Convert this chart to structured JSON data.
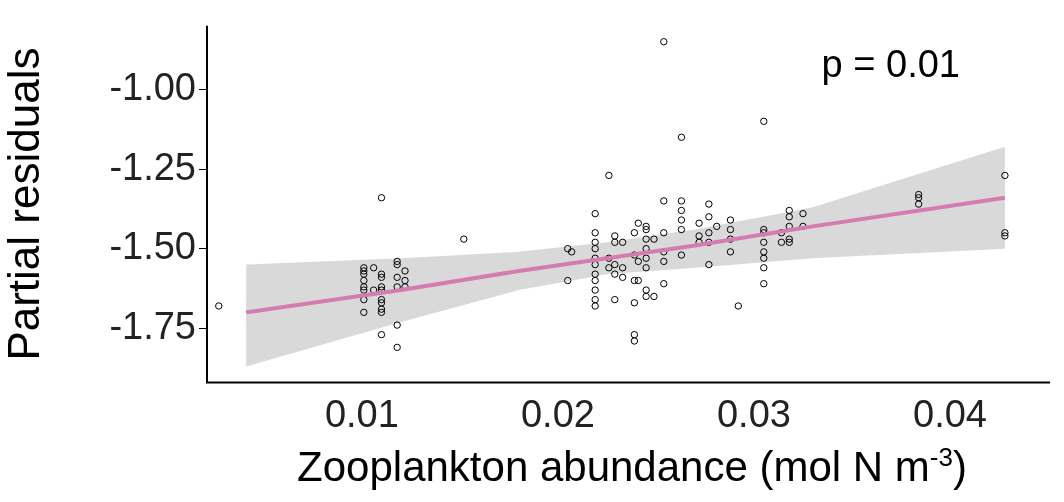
{
  "chart_data": {
    "type": "scatter",
    "xlabel": "Zooplankton abundance (mol N m$^{-3}$)",
    "ylabel": "Partial residuals",
    "xlim": [
      0.0021,
      0.0451
    ],
    "xticks": [
      0.01,
      0.02,
      0.03,
      0.04
    ],
    "ylim": [
      -1.92,
      -0.8
    ],
    "yticks": [
      {
        "value": -1.75,
        "label": "-1.75"
      },
      {
        "value": -1.5,
        "label": "-1.50"
      },
      {
        "value": -1.25,
        "label": "-1.25"
      },
      {
        "value": -1,
        "label": "-1.00"
      }
    ],
    "grid": false,
    "legend": false,
    "marker": "circle",
    "annotations": [
      "p = 0.01"
    ],
    "series": [
      {
        "color": "#000000",
        "x": [
          0.0027,
          0.0101,
          0.0101,
          0.0101,
          0.0101,
          0.0101,
          0.0101,
          0.0101,
          0.0101,
          0.0106,
          0.0106,
          0.011,
          0.011,
          0.011,
          0.011,
          0.011,
          0.011,
          0.011,
          0.011,
          0.011,
          0.011,
          0.0118,
          0.0118,
          0.0118,
          0.0118,
          0.0118,
          0.0118,
          0.0122,
          0.0122,
          0.0122,
          0.0152,
          0.0205,
          0.0205,
          0.0207,
          0.0219,
          0.0219,
          0.0219,
          0.0219,
          0.0219,
          0.0219,
          0.0219,
          0.0219,
          0.0219,
          0.0219,
          0.0219,
          0.0226,
          0.0226,
          0.0226,
          0.0229,
          0.0229,
          0.0229,
          0.0229,
          0.0229,
          0.0233,
          0.0233,
          0.0233,
          0.0239,
          0.0239,
          0.0239,
          0.0239,
          0.0239,
          0.0239,
          0.0241,
          0.0241,
          0.0241,
          0.0245,
          0.0245,
          0.0245,
          0.0245,
          0.0245,
          0.0245,
          0.0245,
          0.0245,
          0.0249,
          0.0249,
          0.0254,
          0.0254,
          0.0254,
          0.0254,
          0.0254,
          0.0254,
          0.0263,
          0.0263,
          0.0263,
          0.0263,
          0.0263,
          0.0263,
          0.0272,
          0.0272,
          0.0272,
          0.0277,
          0.0277,
          0.0277,
          0.0277,
          0.0277,
          0.0281,
          0.0288,
          0.0288,
          0.0288,
          0.0288,
          0.0292,
          0.0305,
          0.0305,
          0.0305,
          0.0305,
          0.0305,
          0.0305,
          0.0305,
          0.0305,
          0.0314,
          0.0314,
          0.0318,
          0.0318,
          0.0318,
          0.0318,
          0.0318,
          0.0325,
          0.0325,
          0.0384,
          0.0384,
          0.0384,
          0.0428,
          0.0428,
          0.0428
        ],
        "values": [
          -1.68,
          -1.56,
          -1.57,
          -1.58,
          -1.6,
          -1.62,
          -1.63,
          -1.66,
          -1.7,
          -1.56,
          -1.63,
          -1.34,
          -1.58,
          -1.59,
          -1.62,
          -1.63,
          -1.66,
          -1.67,
          -1.69,
          -1.7,
          -1.77,
          -1.54,
          -1.55,
          -1.59,
          -1.62,
          -1.74,
          -1.81,
          -1.57,
          -1.6,
          -1.62,
          -1.47,
          -1.5,
          -1.6,
          -1.51,
          -1.39,
          -1.45,
          -1.48,
          -1.5,
          -1.53,
          -1.55,
          -1.58,
          -1.6,
          -1.63,
          -1.66,
          -1.68,
          -1.27,
          -1.53,
          -1.56,
          -1.46,
          -1.48,
          -1.55,
          -1.58,
          -1.66,
          -1.48,
          -1.56,
          -1.59,
          -1.45,
          -1.52,
          -1.6,
          -1.67,
          -1.77,
          -1.79,
          -1.42,
          -1.54,
          -1.6,
          -1.43,
          -1.44,
          -1.47,
          -1.5,
          -1.53,
          -1.56,
          -1.63,
          -1.65,
          -1.47,
          -1.65,
          -0.85,
          -1.35,
          -1.45,
          -1.51,
          -1.54,
          -1.61,
          -1.15,
          -1.35,
          -1.38,
          -1.41,
          -1.44,
          -1.52,
          -1.42,
          -1.46,
          -1.48,
          -1.36,
          -1.4,
          -1.45,
          -1.48,
          -1.55,
          -1.43,
          -1.41,
          -1.44,
          -1.47,
          -1.51,
          -1.68,
          -1.1,
          -1.44,
          -1.45,
          -1.48,
          -1.51,
          -1.53,
          -1.56,
          -1.61,
          -1.45,
          -1.48,
          -1.38,
          -1.4,
          -1.43,
          -1.47,
          -1.48,
          -1.39,
          -1.43,
          -1.33,
          -1.34,
          -1.36,
          -1.27,
          -1.45,
          -1.46
        ]
      },
      {
        "type": "line",
        "color": "#d67bb0",
        "marker": "none",
        "x": [
          0.0041,
          0.012,
          0.018,
          0.0225,
          0.027,
          0.033,
          0.0428
        ],
        "values": [
          -1.7,
          -1.63,
          -1.57,
          -1.53,
          -1.49,
          -1.43,
          -1.34
        ],
        "lower": [
          -1.87,
          -1.73,
          -1.63,
          -1.58,
          -1.56,
          -1.53,
          -1.5
        ],
        "upper": [
          -1.55,
          -1.53,
          -1.51,
          -1.48,
          -1.44,
          -1.37,
          -1.18
        ]
      }
    ]
  }
}
